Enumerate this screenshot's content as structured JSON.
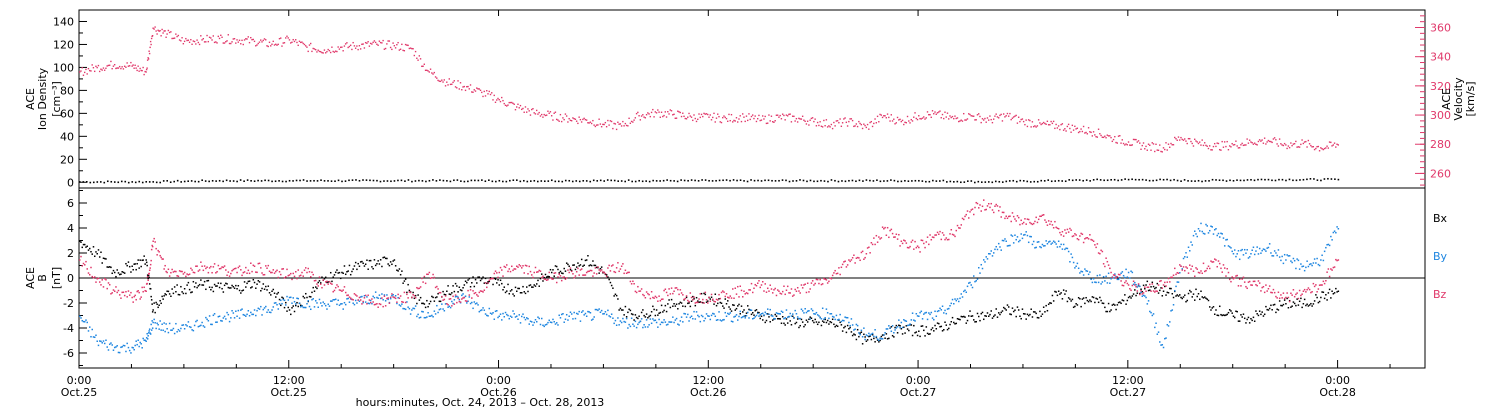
{
  "colors": {
    "black": "#000000",
    "pink": "#e0386a",
    "blue": "#1e86e0"
  },
  "footer_label": "hours:minutes, Oct. 24, 2013 – Oct. 28, 2013",
  "chart_data": [
    {
      "type": "scatter",
      "panel": "top",
      "ylabel_left": [
        "ACE",
        "Ion Density",
        "[cm⁻³]"
      ],
      "ylabel_right": [
        "ACE",
        "Velocity",
        "[km/s]"
      ],
      "ylim": [
        -5,
        150
      ],
      "ylim_right": [
        250,
        372
      ],
      "yticks": [
        0,
        20,
        40,
        60,
        80,
        100,
        120,
        140
      ],
      "yticks_right": [
        260,
        280,
        300,
        320,
        340,
        360
      ],
      "series": [
        {
          "axis": "left",
          "color": "#000000",
          "x": [
            0,
            4,
            8,
            12,
            16,
            20,
            24,
            28,
            32,
            36,
            40,
            44,
            48,
            52,
            56,
            60,
            64,
            68,
            72
          ],
          "values": [
            1,
            1,
            2,
            2,
            2,
            2,
            2,
            2,
            2,
            2,
            2,
            2,
            2,
            1,
            2,
            3,
            2,
            3,
            3
          ]
        },
        {
          "axis": "right",
          "color": "#e0386a",
          "x": [
            0,
            1,
            2,
            3,
            3.8,
            4.2,
            5,
            6,
            7,
            8,
            9,
            10,
            11,
            12,
            13,
            14,
            15,
            16,
            17,
            18,
            19,
            20,
            21,
            22,
            23,
            24,
            25,
            26,
            27,
            28,
            29,
            30,
            31,
            32,
            33,
            34,
            35,
            36,
            37,
            38,
            39,
            40,
            41,
            42,
            43,
            44,
            45,
            46,
            47,
            48,
            49,
            50,
            51,
            52,
            53,
            54,
            55,
            56,
            57,
            58,
            59,
            60,
            61,
            62,
            63,
            64,
            65,
            66,
            67,
            68,
            69,
            70,
            71,
            72
          ],
          "values": [
            330,
            333,
            335,
            334,
            330,
            360,
            356,
            351,
            352,
            353,
            352,
            351,
            349,
            352,
            347,
            345,
            347,
            348,
            349,
            348,
            346,
            330,
            323,
            320,
            316,
            311,
            306,
            302,
            300,
            298,
            297,
            294,
            293,
            300,
            302,
            301,
            299,
            299,
            298,
            299,
            297,
            299,
            298,
            296,
            294,
            296,
            292,
            300,
            296,
            300,
            301,
            298,
            300,
            297,
            300,
            296,
            294,
            293,
            291,
            289,
            285,
            282,
            279,
            278,
            285,
            281,
            279,
            280,
            282,
            283,
            280,
            281,
            278,
            280
          ]
        }
      ]
    },
    {
      "type": "scatter",
      "panel": "bottom",
      "ylabel_left": [
        "ACE",
        "B",
        "[nT]"
      ],
      "ylim": [
        -7.2,
        7.2
      ],
      "yticks": [
        -6,
        -4,
        -2,
        0,
        2,
        4,
        6
      ],
      "legend": [
        "Bx",
        "By",
        "Bz"
      ],
      "xtick_labels": [
        {
          "x": 0,
          "time": "0:00",
          "date": "Oct.25"
        },
        {
          "x": 12,
          "time": "12:00",
          "date": "Oct.25"
        },
        {
          "x": 24,
          "time": "0:00",
          "date": "Oct.26"
        },
        {
          "x": 36,
          "time": "12:00",
          "date": "Oct.26"
        },
        {
          "x": 48,
          "time": "0:00",
          "date": "Oct.27"
        },
        {
          "x": 60,
          "time": "12:00",
          "date": "Oct.27"
        },
        {
          "x": 72,
          "time": "0:00",
          "date": "Oct.28"
        }
      ],
      "xlim": [
        0,
        77
      ],
      "series": [
        {
          "name": "Bx",
          "color": "#000000",
          "x": [
            0,
            1,
            2,
            3,
            3.8,
            4.2,
            5,
            6,
            7,
            8,
            9,
            10,
            11,
            12,
            13,
            14,
            15,
            16,
            17,
            18,
            19,
            20,
            21,
            22,
            23,
            24,
            25,
            26,
            27,
            28,
            29,
            30,
            31,
            32,
            33,
            34,
            35,
            36,
            37,
            38,
            39,
            40,
            41,
            42,
            43,
            44,
            45,
            46,
            47,
            48,
            49,
            50,
            51,
            52,
            53,
            54,
            55,
            56,
            57,
            58,
            59,
            60,
            61,
            62,
            63,
            64,
            65,
            66,
            67,
            68,
            69,
            70,
            71,
            72
          ],
          "values": [
            3.0,
            2.0,
            0.5,
            1.0,
            1.5,
            -2.5,
            -1.0,
            -0.8,
            -0.5,
            -0.7,
            -0.8,
            -0.3,
            -1.0,
            -2.5,
            -1.5,
            0.0,
            0.5,
            1.0,
            1.2,
            1.5,
            -1.5,
            -2.0,
            -1.0,
            -0.5,
            0.0,
            -0.5,
            -1.0,
            -0.5,
            0.5,
            1.0,
            1.5,
            0.5,
            -2.5,
            -3.0,
            -2.5,
            -2.0,
            -1.8,
            -1.5,
            -2.0,
            -2.5,
            -3.0,
            -3.2,
            -3.5,
            -3.5,
            -3.5,
            -4.0,
            -5.0,
            -4.5,
            -4.0,
            -4.2,
            -4.0,
            -3.5,
            -3.0,
            -3.0,
            -2.5,
            -2.8,
            -3.0,
            -1.0,
            -2.0,
            -1.5,
            -2.5,
            -1.5,
            -0.5,
            -1.0,
            -1.5,
            -1.2,
            -2.5,
            -3.0,
            -3.2,
            -2.5,
            -2.0,
            -2.0,
            -1.5,
            -1.0
          ]
        },
        {
          "name": "By",
          "color": "#1e86e0",
          "x": [
            0,
            1,
            2,
            3,
            3.8,
            4.2,
            5,
            6,
            7,
            8,
            9,
            10,
            11,
            12,
            13,
            14,
            15,
            16,
            17,
            18,
            19,
            20,
            21,
            22,
            23,
            24,
            25,
            26,
            27,
            28,
            29,
            30,
            31,
            32,
            33,
            34,
            35,
            36,
            37,
            38,
            39,
            40,
            41,
            42,
            43,
            44,
            45,
            46,
            47,
            48,
            49,
            50,
            51,
            52,
            53,
            54,
            55,
            56,
            57,
            58,
            59,
            60,
            61,
            62,
            63,
            64,
            65,
            66,
            67,
            68,
            69,
            70,
            71,
            72
          ],
          "values": [
            -3.0,
            -5.0,
            -5.5,
            -5.5,
            -5.0,
            -3.5,
            -4.0,
            -4.0,
            -3.5,
            -3.0,
            -3.0,
            -2.5,
            -2.5,
            -1.5,
            -2.0,
            -2.0,
            -2.0,
            -1.8,
            -1.5,
            -1.5,
            -2.5,
            -3.0,
            -2.0,
            -1.5,
            -2.5,
            -3.0,
            -3.0,
            -3.5,
            -3.5,
            -3.0,
            -3.0,
            -2.8,
            -3.5,
            -3.5,
            -3.5,
            -3.5,
            -3.0,
            -3.0,
            -3.0,
            -3.0,
            -2.8,
            -2.8,
            -2.8,
            -2.8,
            -2.8,
            -3.5,
            -4.5,
            -4.5,
            -3.5,
            -3.0,
            -3.0,
            -2.0,
            -0.5,
            2.0,
            3.0,
            3.5,
            2.5,
            3.0,
            1.0,
            0.0,
            0.0,
            0.5,
            -1.5,
            -5.5,
            1.0,
            4.0,
            4.0,
            2.0,
            2.0,
            2.5,
            1.5,
            1.0,
            1.5,
            4.0
          ]
        },
        {
          "name": "Bz",
          "color": "#e0386a",
          "x": [
            0,
            1,
            2,
            3,
            3.8,
            4.2,
            5,
            6,
            7,
            8,
            9,
            10,
            11,
            12,
            13,
            14,
            15,
            16,
            17,
            18,
            19,
            20,
            21,
            22,
            23,
            24,
            25,
            26,
            27,
            28,
            29,
            30,
            31,
            32,
            33,
            34,
            35,
            36,
            37,
            38,
            39,
            40,
            41,
            42,
            43,
            44,
            45,
            46,
            47,
            48,
            49,
            50,
            51,
            52,
            53,
            54,
            55,
            56,
            57,
            58,
            59,
            60,
            61,
            62,
            63,
            64,
            65,
            66,
            67,
            68,
            69,
            70,
            71,
            72
          ],
          "values": [
            1.5,
            0.0,
            -1.0,
            -1.5,
            -1.0,
            3.0,
            0.5,
            0.5,
            1.0,
            0.8,
            0.5,
            1.0,
            0.5,
            0.3,
            0.5,
            -0.5,
            -1.0,
            -1.5,
            -2.0,
            -1.5,
            -1.5,
            0.5,
            -2.0,
            -1.5,
            -1.0,
            0.5,
            1.0,
            0.5,
            0.0,
            0.5,
            0.5,
            0.5,
            1.0,
            -1.0,
            -1.5,
            -1.0,
            -1.5,
            -1.5,
            -1.2,
            -1.0,
            -0.5,
            -1.0,
            -1.0,
            -0.5,
            0.0,
            1.5,
            2.0,
            4.0,
            3.0,
            2.5,
            3.5,
            3.5,
            5.5,
            6.0,
            5.0,
            4.5,
            5.0,
            4.0,
            3.5,
            3.0,
            0.5,
            -0.5,
            -1.0,
            -0.5,
            1.0,
            0.5,
            1.5,
            0.0,
            -0.5,
            -0.8,
            -1.5,
            -1.0,
            -0.5,
            1.5
          ]
        }
      ]
    }
  ]
}
